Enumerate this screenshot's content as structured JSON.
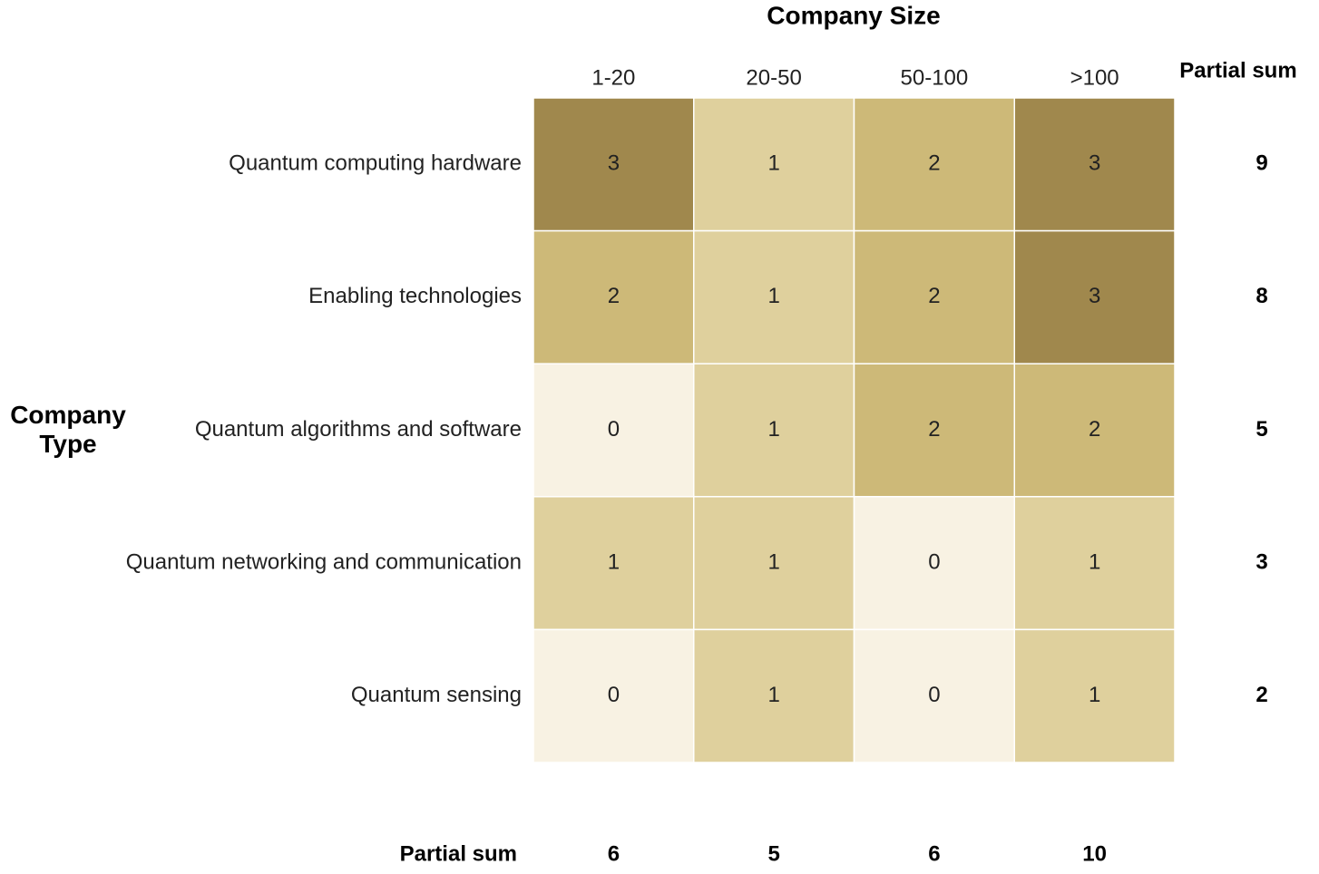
{
  "chart_data": {
    "type": "heatmap",
    "title": "Company Size",
    "y_label": "Company Type",
    "x_categories": [
      "1-20",
      "20-50",
      "50-100",
      ">100"
    ],
    "y_categories": [
      "Quantum computing hardware",
      "Enabling technologies",
      "Quantum algorithms and software",
      "Quantum networking and communication",
      "Quantum sensing"
    ],
    "values": [
      [
        3,
        1,
        2,
        3
      ],
      [
        2,
        1,
        2,
        3
      ],
      [
        0,
        1,
        2,
        2
      ],
      [
        1,
        1,
        0,
        1
      ],
      [
        0,
        1,
        0,
        1
      ]
    ],
    "colors": [
      "#f8f2e3",
      "#dfd09d",
      "#cdb978",
      "#a0884d"
    ],
    "row_sum_label": "Partial sum",
    "row_sums": [
      9,
      8,
      5,
      3,
      2
    ],
    "col_sum_label": "Partial sum",
    "col_sums": [
      6,
      5,
      6,
      10
    ]
  }
}
